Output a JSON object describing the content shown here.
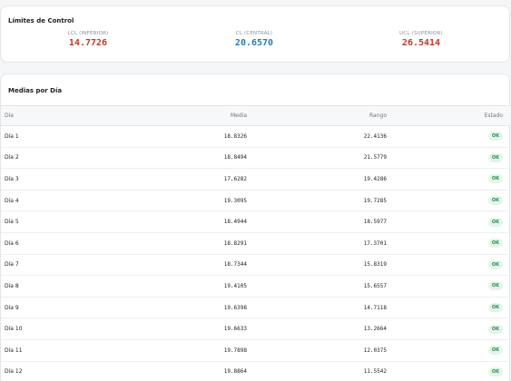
{
  "limits": {
    "title": "Límites de Control",
    "lcl": {
      "label": "LCL (INFERIOR)",
      "value": "14.7726",
      "color": "#c0392b"
    },
    "cl": {
      "label": "CL (CENTRAL)",
      "value": "20.6570",
      "color": "#2b7bb9"
    },
    "ucl": {
      "label": "UCL (SUPERIOR)",
      "value": "26.5414",
      "color": "#c0392b"
    }
  },
  "table": {
    "title": "Medias por Día",
    "headers": {
      "dia": "Día",
      "media": "Media",
      "rango": "Rango",
      "estado": "Estado"
    },
    "rows": [
      {
        "dia": "Día 1",
        "media": "18.8326",
        "rango": "22.4136",
        "estado": "OK"
      },
      {
        "dia": "Día 2",
        "media": "18.8494",
        "rango": "21.5779",
        "estado": "OK"
      },
      {
        "dia": "Día 3",
        "media": "17.6282",
        "rango": "19.4286",
        "estado": "OK"
      },
      {
        "dia": "Día 4",
        "media": "19.3095",
        "rango": "19.7285",
        "estado": "OK"
      },
      {
        "dia": "Día 5",
        "media": "18.4944",
        "rango": "18.5977",
        "estado": "OK"
      },
      {
        "dia": "Día 6",
        "media": "18.8291",
        "rango": "17.3701",
        "estado": "OK"
      },
      {
        "dia": "Día 7",
        "media": "18.7344",
        "rango": "15.8319",
        "estado": "OK"
      },
      {
        "dia": "Día 8",
        "media": "19.4105",
        "rango": "15.6557",
        "estado": "OK"
      },
      {
        "dia": "Día 9",
        "media": "19.6398",
        "rango": "14.7118",
        "estado": "OK"
      },
      {
        "dia": "Día 10",
        "media": "19.6633",
        "rango": "13.2664",
        "estado": "OK"
      },
      {
        "dia": "Día 11",
        "media": "19.7898",
        "rango": "12.0375",
        "estado": "OK"
      },
      {
        "dia": "Día 12",
        "media": "19.8864",
        "rango": "11.5542",
        "estado": "OK"
      }
    ]
  }
}
